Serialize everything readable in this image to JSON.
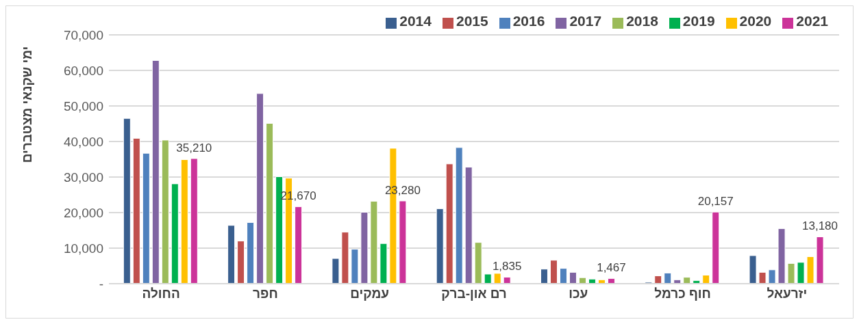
{
  "chart_data": {
    "type": "bar",
    "ylabel": "ימי שקנאי מצטברים",
    "categories": [
      "החולה",
      "חפר",
      "עמקים",
      "רם און-ברק",
      "עכו",
      "חוף כרמל",
      "יזרעאל"
    ],
    "series": [
      {
        "name": "2014",
        "color": "#3a5f8f",
        "values": [
          46500,
          16400,
          7100,
          21100,
          4100,
          400,
          7900
        ]
      },
      {
        "name": "2015",
        "color": "#c0504d",
        "values": [
          40900,
          12000,
          14500,
          33700,
          6600,
          2200,
          3200
        ]
      },
      {
        "name": "2016",
        "color": "#4f81bd",
        "values": [
          36700,
          17200,
          9700,
          38300,
          4300,
          3000,
          3900
        ]
      },
      {
        "name": "2017",
        "color": "#8064a2",
        "values": [
          62800,
          53500,
          20100,
          32800,
          3200,
          1100,
          15500
        ]
      },
      {
        "name": "2018",
        "color": "#9bbb59",
        "values": [
          40400,
          45100,
          23200,
          11600,
          1700,
          1800,
          5700
        ]
      },
      {
        "name": "2019",
        "color": "#00b050",
        "values": [
          28100,
          30100,
          11300,
          2700,
          1300,
          900,
          6000
        ]
      },
      {
        "name": "2020",
        "color": "#ffc000",
        "values": [
          34900,
          29700,
          38100,
          2900,
          1100,
          2400,
          7600
        ]
      },
      {
        "name": "2021",
        "color": "#cc3399",
        "values": [
          35210,
          21670,
          23280,
          1835,
          1467,
          20157,
          13180
        ],
        "value_labels": [
          "35,210",
          "21,670",
          "23,280",
          "1,835",
          "1,467",
          "20,157",
          "13,180"
        ]
      }
    ],
    "ylim": [
      0,
      70000
    ],
    "yticks": [
      {
        "value": 0,
        "label": "-"
      },
      {
        "value": 10000,
        "label": "10,000"
      },
      {
        "value": 20000,
        "label": "20,000"
      },
      {
        "value": 30000,
        "label": "30,000"
      },
      {
        "value": 40000,
        "label": "40,000"
      },
      {
        "value": 50000,
        "label": "50,000"
      },
      {
        "value": 60000,
        "label": "60,000"
      },
      {
        "value": 70000,
        "label": "70,000"
      }
    ],
    "grid": "y",
    "legend": "top right"
  }
}
